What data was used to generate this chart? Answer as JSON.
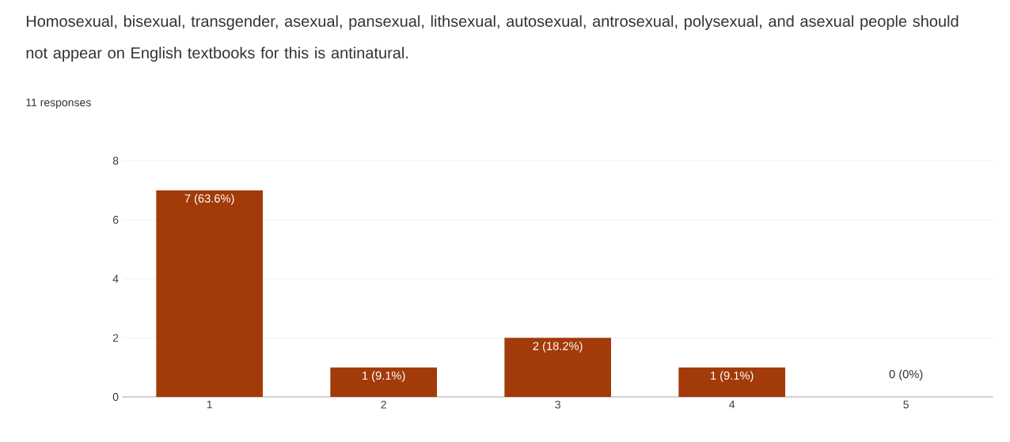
{
  "chart_data": {
    "type": "bar",
    "title": "Homosexual, bisexual, transgender, asexual, pansexual, lithsexual, autosexual, antrosexual, polysexual, and asexual people should not appear on English textbooks for this is antinatural.",
    "subtitle": "11 responses",
    "categories": [
      "1",
      "2",
      "3",
      "4",
      "5"
    ],
    "values": [
      7,
      1,
      2,
      1,
      0
    ],
    "value_labels": [
      "7 (63.6%)",
      "1 (9.1%)",
      "2 (18.2%)",
      "1 (9.1%)",
      "0 (0%)"
    ],
    "color": "#a33a0a",
    "ylim": [
      0,
      8
    ],
    "yticks": [
      0,
      2,
      4,
      6,
      8
    ],
    "grid": "y"
  }
}
